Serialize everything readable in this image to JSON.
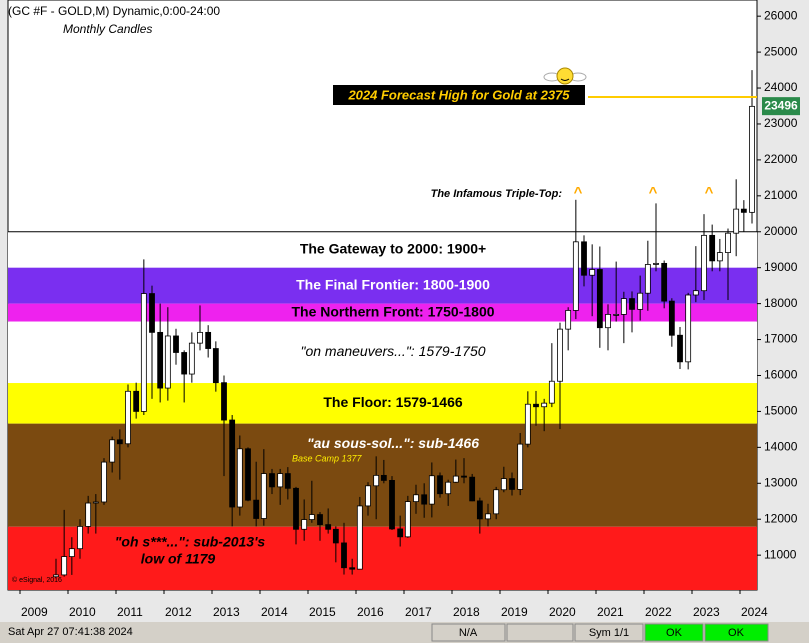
{
  "chart_data": {
    "type": "candlestick",
    "title": "(GC #F - GOLD,M) Dynamic,0:00-24:00",
    "subtitle": "Monthly Candles",
    "x": [
      2009.75,
      2009.92,
      2010.08,
      2010.25,
      2010.42,
      2010.58,
      2010.75,
      2010.92,
      2011.08,
      2011.25,
      2011.42,
      2011.58,
      2011.75,
      2011.92,
      2012.08,
      2012.25,
      2012.42,
      2012.58,
      2012.75,
      2012.92,
      2013.08,
      2013.25,
      2013.42,
      2013.58,
      2013.75,
      2013.92,
      2014.08,
      2014.25,
      2014.42,
      2014.58,
      2014.75,
      2014.92,
      2015.08,
      2015.25,
      2015.42,
      2015.58,
      2015.75,
      2015.92,
      2016.08,
      2016.25,
      2016.42,
      2016.58,
      2016.75,
      2016.92,
      2017.08,
      2017.25,
      2017.42,
      2017.58,
      2017.75,
      2017.92,
      2018.08,
      2018.25,
      2018.42,
      2018.58,
      2018.75,
      2018.92,
      2019.08,
      2019.25,
      2019.42,
      2019.58,
      2019.75,
      2019.92,
      2020.08,
      2020.25,
      2020.42,
      2020.58,
      2020.75,
      2020.92,
      2021.08,
      2021.25,
      2021.42,
      2021.58,
      2021.75,
      2021.92,
      2022.08,
      2022.25,
      2022.42,
      2022.58,
      2022.75,
      2022.92,
      2023.08,
      2023.25,
      2023.42,
      2023.58,
      2023.75,
      2023.92,
      2024.08,
      2024.25
    ],
    "open": [
      10400,
      10450,
      10960,
      11180,
      11800,
      12450,
      12480,
      13590,
      14210,
      14100,
      15560,
      15000,
      18280,
      17200,
      15650,
      17100,
      16640,
      16040,
      16900,
      17200,
      16750,
      15800,
      14760,
      12340,
      13960,
      12530,
      12020,
      13270,
      12900,
      13270,
      12860,
      11720,
      11990,
      12130,
      11850,
      11720,
      11340,
      10650,
      10610,
      12370,
      12930,
      13220,
      13080,
      11730,
      11510,
      12490,
      12680,
      12420,
      13210,
      12710,
      13030,
      13200,
      13170,
      12510,
      12010,
      12150,
      12820,
      13130,
      12830,
      14090,
      15200,
      15130,
      15230,
      15840,
      17290,
      17810,
      19720,
      18790,
      18950,
      17330,
      17700,
      17700,
      18140,
      17840,
      18290,
      19090,
      19120,
      18070,
      17120,
      16380,
      18240,
      18360,
      19900,
      19190,
      19420,
      19960,
      20630,
      20540
    ],
    "high": [
      10900,
      12260,
      11500,
      12000,
      12650,
      12700,
      13700,
      14300,
      14500,
      15750,
      15800,
      19230,
      18500,
      18000,
      17900,
      17300,
      16700,
      17200,
      17950,
      17400,
      16950,
      16000,
      14900,
      14330,
      14000,
      13600,
      13950,
      13400,
      13400,
      13450,
      12900,
      12550,
      13070,
      12200,
      12300,
      11800,
      11900,
      10900,
      12620,
      13030,
      13750,
      13650,
      13200,
      12100,
      12650,
      12960,
      13000,
      13580,
      13300,
      13100,
      13660,
      13700,
      13260,
      12600,
      12430,
      12900,
      13460,
      13300,
      14400,
      15560,
      15570,
      15350,
      16900,
      17470,
      17900,
      20890,
      19900,
      19650,
      19590,
      17980,
      19170,
      18330,
      18340,
      18780,
      19750,
      20790,
      19200,
      18150,
      17350,
      18300,
      19600,
      20490,
      20200,
      19800,
      20090,
      21460,
      20880,
      24500
    ],
    "low": [
      10350,
      10400,
      10450,
      10900,
      11600,
      11600,
      12400,
      13300,
      13100,
      14000,
      14800,
      14900,
      15350,
      15250,
      15300,
      16300,
      15250,
      15800,
      16700,
      16500,
      15550,
      13200,
      11800,
      12100,
      12500,
      11800,
      11820,
      12700,
      12400,
      12550,
      11300,
      11400,
      11900,
      11400,
      11600,
      10800,
      10460,
      10460,
      10600,
      12100,
      12000,
      13000,
      11700,
      11240,
      11480,
      12150,
      12040,
      12050,
      12600,
      12370,
      13010,
      13000,
      12500,
      11600,
      11800,
      12000,
      12750,
      12660,
      12670,
      14000,
      14600,
      14450,
      15120,
      14510,
      16700,
      17570,
      18480,
      17650,
      16770,
      16700,
      17500,
      16900,
      17200,
      17530,
      17800,
      18900,
      17870,
      16800,
      16180,
      16170,
      18040,
      18100,
      18900,
      18900,
      18100,
      19320,
      20000,
      20230
    ],
    "close": [
      10450,
      10960,
      11180,
      11800,
      12450,
      12480,
      13590,
      14210,
      14100,
      15560,
      15000,
      18280,
      17200,
      15650,
      17100,
      16640,
      16040,
      16900,
      17200,
      16750,
      15800,
      14760,
      12340,
      13960,
      12530,
      12020,
      13270,
      12900,
      13270,
      12860,
      11720,
      11990,
      12130,
      11850,
      11720,
      11340,
      10650,
      10610,
      12370,
      12930,
      13220,
      13080,
      11730,
      11510,
      12490,
      12680,
      12420,
      13210,
      12710,
      13030,
      13200,
      13170,
      12510,
      12010,
      12150,
      12820,
      13130,
      12830,
      14090,
      15200,
      15130,
      15230,
      15840,
      17290,
      17810,
      19720,
      18790,
      18950,
      17330,
      17700,
      17700,
      18140,
      17840,
      18290,
      19090,
      19120,
      18070,
      17120,
      16380,
      18240,
      18360,
      19900,
      19190,
      19420,
      19960,
      20630,
      20540,
      23490
    ],
    "up_color": "#ffffff",
    "down_color": "#000000",
    "xlim": [
      2008.75,
      2024.354
    ],
    "xticks": [
      2009,
      2010,
      2011,
      2012,
      2013,
      2014,
      2015,
      2016,
      2017,
      2018,
      2019,
      2020,
      2021,
      2022,
      2023,
      2024
    ],
    "ylim": [
      10030,
      26450
    ],
    "yticks": [
      11000,
      12000,
      13000,
      14000,
      15000,
      16000,
      17000,
      18000,
      19000,
      20000,
      21000,
      22000,
      23000,
      24000,
      25000,
      26000
    ],
    "bands": [
      {
        "label": "The Gateway to 2000:  1900+",
        "from": 19000,
        "to": 20000,
        "color": "#ffffff",
        "text_color": "#000000"
      },
      {
        "label": "The Final Frontier:  1800-1900",
        "from": 18000,
        "to": 19000,
        "color": "#7a2ff0",
        "text_color": "#ffffff"
      },
      {
        "label": "The Northern Front:  1750-1800",
        "from": 17500,
        "to": 18000,
        "color": "#ee22ee",
        "text_color": "#000000"
      },
      {
        "label": "\"on maneuvers...\":  1579-1750",
        "from": 15790,
        "to": 17500,
        "color": "#ffffff",
        "text_color": "#000000"
      },
      {
        "label": "The Floor:  1579-1466",
        "from": 14660,
        "to": 15790,
        "color": "#ffff00",
        "text_color": "#000000"
      },
      {
        "label": "\"au sous-sol...\":  sub-1466",
        "from": 11790,
        "to": 14660,
        "color": "#7b4a10",
        "text_color": "#ffffff"
      },
      {
        "label": "\"oh s***...\":  sub-2013's",
        "sublabel": "low of 1179",
        "from": null,
        "to": 11790,
        "color": "#ff1a1a",
        "text_color": "#000000"
      }
    ],
    "base_camp": "Base Camp 1377",
    "forecast": {
      "label": "2024 Forecast High for Gold at 2375",
      "value": 23750,
      "color": "#ffcc00"
    },
    "last_price": 23496,
    "triple_top": {
      "label": "The Infamous Triple-Top:",
      "marker": "^"
    },
    "copyright": "© eSignal, 2016"
  },
  "status_bar": {
    "time": "Sat Apr 27 07:41:38 2024",
    "fields": [
      "N/A",
      "Sym 1/1",
      "OK",
      "OK"
    ]
  }
}
